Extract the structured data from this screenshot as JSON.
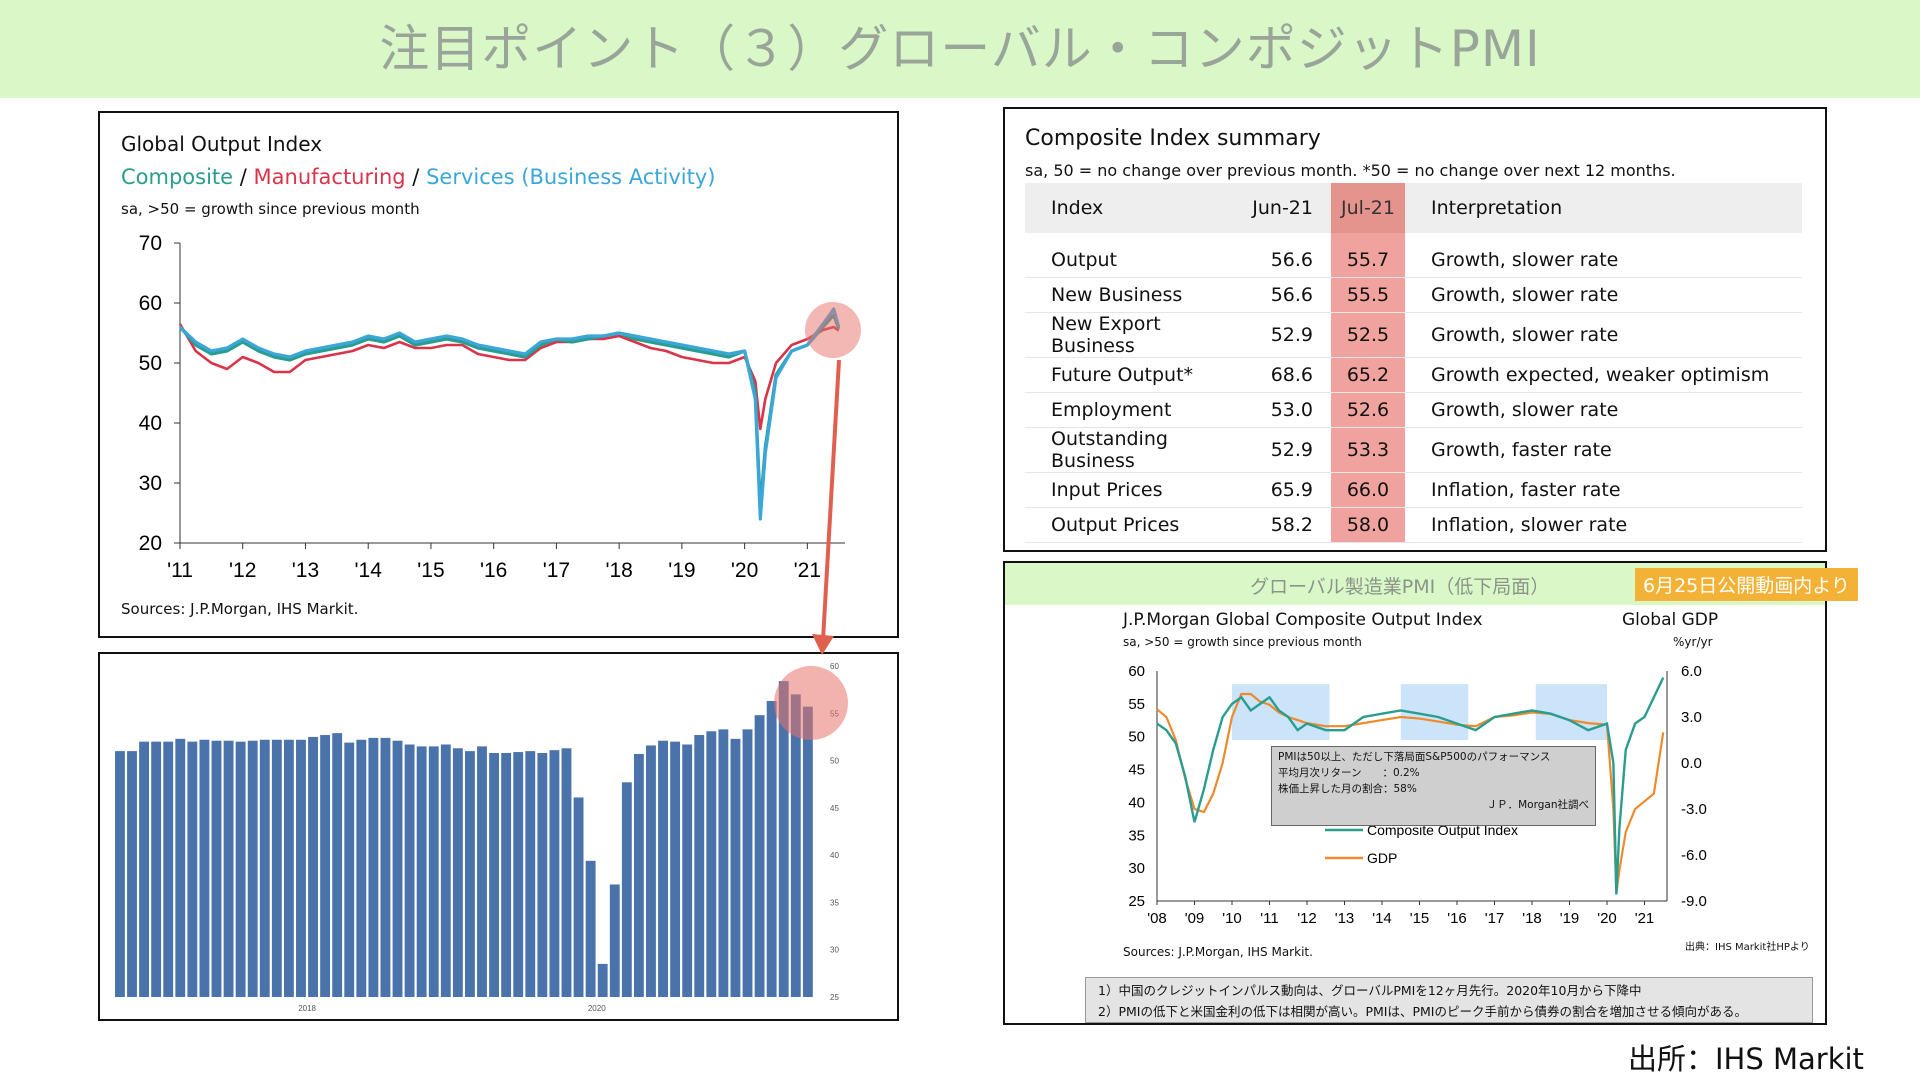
{
  "page": {
    "title": "注目ポイント（３）グローバル・コンポジットPMI",
    "source": "出所：IHS Markit"
  },
  "global_output": {
    "title": "Global Output Index",
    "legend": {
      "composite": "Composite",
      "sep": "/",
      "manufacturing": "Manufacturing",
      "services": "Services (Business Activity)"
    },
    "subtitle": "sa, >50 = growth since previous month",
    "source": "Sources: J.P.Morgan, IHS Markit."
  },
  "summary": {
    "title": "Composite Index summary",
    "subtitle": "sa, 50 = no change over previous month. *50 = no change over next 12 months.",
    "headers": [
      "Index",
      "Jun-21",
      "Jul-21",
      "Interpretation"
    ],
    "rows": [
      [
        "Output",
        "56.6",
        "55.7",
        "Growth, slower rate"
      ],
      [
        "New Business",
        "56.6",
        "55.5",
        "Growth, slower rate"
      ],
      [
        "New Export Business",
        "52.9",
        "52.5",
        "Growth, slower rate"
      ],
      [
        "Future Output*",
        "68.6",
        "65.2",
        "Growth expected, weaker optimism"
      ],
      [
        "Employment",
        "53.0",
        "52.6",
        "Growth, slower rate"
      ],
      [
        "Outstanding Business",
        "52.9",
        "53.3",
        "Growth, faster rate"
      ],
      [
        "Input Prices",
        "65.9",
        "66.0",
        "Inflation, faster rate"
      ],
      [
        "Output Prices",
        "58.2",
        "58.0",
        "Inflation, slower rate"
      ]
    ]
  },
  "gdp_panel": {
    "header": "グローバル製造業PMI（低下局面）",
    "badge": "6月25日公開動画内より",
    "title": "J.P.Morgan Global Composite Output Index",
    "subtitle": "sa, >50 = growth since previous month",
    "right_title": "Global GDP",
    "right_unit": "%yr/yr",
    "source": "Sources: J.P.Morgan, IHS Markit.",
    "credit": "出典：IHS Markit社HPより",
    "pmi_note": {
      "line1": "PMIは50以上、ただし下落局面S&P500のパフォーマンス",
      "line2": "平均月次リターン　　：0.2%",
      "line3": "株価上昇した月の割合：58%",
      "line4": "ＪＰ．Morgan社調べ"
    },
    "notes": [
      "1）中国のクレジットインパルス動向は、グローバルPMIを12ヶ月先行。2020年10月から下降中",
      "2）PMIの低下と米国金利の低下は相関が高い。PMIは、PMIのピーク手前から債券の割合を増加させる傾向がある。"
    ]
  },
  "colors": {
    "composite": "#2a9d8f",
    "manufacturing": "#d9344a",
    "services": "#3ba7d9",
    "bar": "#4a73ab",
    "highlight": "#e8726a",
    "gdp": "#ef8a2c",
    "band": "#b9dbf7"
  },
  "chart_data": [
    {
      "type": "line",
      "title": "Global Output Index",
      "x_ticks": [
        "'11",
        "'12",
        "'13",
        "'14",
        "'15",
        "'16",
        "'17",
        "'18",
        "'19",
        "'20",
        "'21"
      ],
      "y_ticks": [
        "70",
        "60",
        "50",
        "40",
        "30",
        "20"
      ],
      "ylim": [
        20,
        70
      ],
      "x": [
        2011.0,
        2011.25,
        2011.5,
        2011.75,
        2012.0,
        2012.25,
        2012.5,
        2012.75,
        2013.0,
        2013.25,
        2013.5,
        2013.75,
        2014.0,
        2014.25,
        2014.5,
        2014.75,
        2015.0,
        2015.25,
        2015.5,
        2015.75,
        2016.0,
        2016.25,
        2016.5,
        2016.75,
        2017.0,
        2017.25,
        2017.5,
        2017.75,
        2018.0,
        2018.25,
        2018.5,
        2018.75,
        2019.0,
        2019.25,
        2019.5,
        2019.75,
        2020.0,
        2020.17,
        2020.25,
        2020.33,
        2020.5,
        2020.75,
        2021.0,
        2021.25,
        2021.42,
        2021.5
      ],
      "series": [
        {
          "name": "Composite",
          "values": [
            56,
            53,
            51.5,
            52,
            53.5,
            52,
            51,
            50.5,
            51.5,
            52,
            52.5,
            53,
            54,
            53.5,
            54.5,
            53,
            53.5,
            54,
            53.5,
            52.5,
            52,
            51.5,
            51,
            53,
            54,
            53.5,
            54,
            54.5,
            55,
            54,
            53.5,
            53,
            52.5,
            52,
            51.5,
            51,
            52,
            45,
            26,
            36,
            48,
            52,
            53,
            56,
            58,
            55.7
          ]
        },
        {
          "name": "Manufacturing",
          "values": [
            56.5,
            52,
            50,
            49,
            51,
            50,
            48.5,
            48.5,
            50.5,
            51,
            51.5,
            52,
            53,
            52.5,
            53.5,
            52.5,
            52.5,
            53,
            53,
            51.5,
            51,
            50.5,
            50.5,
            52.5,
            53.5,
            53.5,
            54,
            54,
            54.5,
            53.5,
            52.5,
            52,
            51,
            50.5,
            50,
            50,
            51,
            47,
            39,
            44,
            50,
            53,
            54,
            55.5,
            56,
            55.4
          ]
        },
        {
          "name": "Services (Business Activity)",
          "values": [
            56,
            53.5,
            52,
            52.5,
            54,
            52.5,
            51.5,
            51,
            52,
            52.5,
            53,
            53.5,
            54.5,
            54,
            55,
            53.5,
            54,
            54.5,
            54,
            53,
            52.5,
            52,
            51.5,
            53.5,
            54,
            54,
            54.5,
            54.5,
            55,
            54.5,
            54,
            53.5,
            53,
            52.5,
            52,
            51.5,
            52,
            44,
            24,
            35,
            47.5,
            52,
            53,
            56.5,
            59,
            56
          ]
        }
      ],
      "source": "Sources: J.P.Morgan, IHS Markit."
    },
    {
      "type": "bar",
      "x_ticks": [
        "2018",
        "2020"
      ],
      "y_ticks": [
        "60",
        "55",
        "50",
        "45",
        "40",
        "35",
        "30",
        "25"
      ],
      "ylim": [
        25,
        60
      ],
      "values": [
        51,
        51,
        52,
        52,
        52,
        52.3,
        52,
        52.2,
        52.1,
        52.1,
        52,
        52.1,
        52.2,
        52.2,
        52.2,
        52.2,
        52.5,
        52.7,
        52.9,
        51.9,
        52.2,
        52.4,
        52.4,
        52.1,
        51.7,
        51.5,
        51.5,
        51.7,
        51.3,
        51,
        51.5,
        50.8,
        50.8,
        50.9,
        51,
        50.8,
        51.1,
        51.3,
        46.1,
        39.4,
        28.5,
        36.9,
        47.7,
        50.7,
        51.6,
        52.1,
        52,
        51.7,
        52.7,
        53.1,
        53.3,
        52.3,
        53.3,
        54.8,
        56.3,
        58.4,
        57,
        55.7
      ]
    },
    {
      "type": "line",
      "title": "J.P.Morgan Global Composite Output Index",
      "x_ticks": [
        "'08",
        "'09",
        "'10",
        "'11",
        "'12",
        "'13",
        "'14",
        "'15",
        "'16",
        "'17",
        "'18",
        "'19",
        "'20",
        "'21"
      ],
      "y_ticks_left": [
        "60",
        "55",
        "50",
        "45",
        "40",
        "35",
        "30",
        "25"
      ],
      "ylim_left": [
        25,
        60
      ],
      "y_ticks_right": [
        "6.0",
        "3.0",
        "0.0",
        "-3.0",
        "-6.0",
        "-9.0"
      ],
      "ylim_right": [
        -9,
        6
      ],
      "x": [
        2008.0,
        2008.25,
        2008.5,
        2008.75,
        2009.0,
        2009.25,
        2009.5,
        2009.75,
        2010.0,
        2010.25,
        2010.5,
        2010.75,
        2011.0,
        2011.25,
        2011.5,
        2011.75,
        2012.0,
        2012.5,
        2013.0,
        2013.5,
        2014.0,
        2014.5,
        2015.0,
        2015.5,
        2016.0,
        2016.5,
        2017.0,
        2017.5,
        2018.0,
        2018.5,
        2019.0,
        2019.5,
        2020.0,
        2020.17,
        2020.25,
        2020.33,
        2020.5,
        2020.75,
        2021.0,
        2021.25,
        2021.5
      ],
      "series": [
        {
          "name": "Composite Output Index",
          "values": [
            52,
            51,
            49,
            44,
            37,
            42,
            48,
            53,
            55,
            56,
            54,
            55,
            56,
            54,
            53,
            51,
            52,
            51,
            51,
            53,
            53.5,
            54,
            53.5,
            53,
            52,
            51,
            53,
            53.5,
            54,
            53.5,
            52.5,
            51,
            52,
            46,
            26,
            36,
            48,
            52,
            53,
            56,
            59
          ]
        },
        {
          "name": "GDP",
          "values": [
            3.5,
            3,
            1.5,
            -1,
            -3,
            -3.2,
            -2,
            0,
            3,
            4.5,
            4.5,
            4,
            3.8,
            3.3,
            3,
            2.8,
            2.6,
            2.4,
            2.4,
            2.6,
            2.8,
            3,
            2.9,
            2.7,
            2.5,
            2.4,
            3,
            3.1,
            3.3,
            3.2,
            2.8,
            2.6,
            2.5,
            -3,
            -8.5,
            -7,
            -4.5,
            -3,
            -2.5,
            -2,
            2
          ]
        }
      ],
      "source": "Sources: J.P.Morgan, IHS Markit."
    }
  ]
}
